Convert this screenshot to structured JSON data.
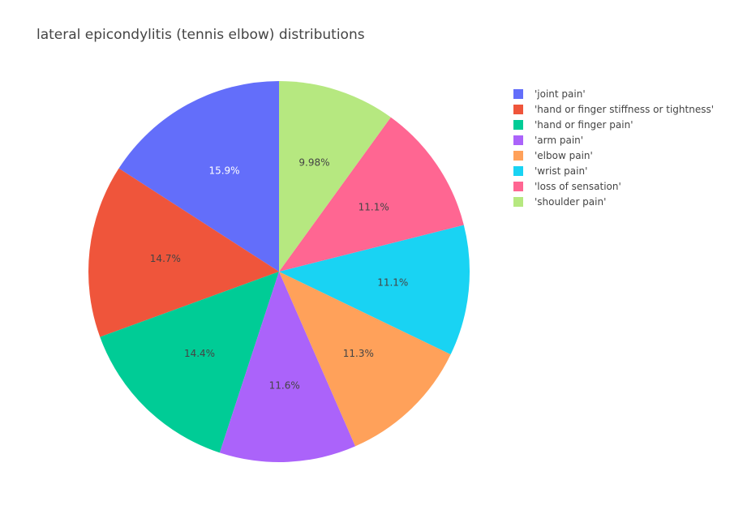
{
  "chart_data": {
    "type": "pie",
    "title": "lateral epicondylitis (tennis elbow) distributions",
    "labels": [
      "'joint pain'",
      "'hand or finger stiffness or tightness'",
      "'hand or finger pain'",
      "'arm pain'",
      "'elbow pain'",
      "'wrist pain'",
      "'loss of sensation'",
      "'shoulder pain'"
    ],
    "values": [
      15.9,
      14.7,
      14.4,
      11.6,
      11.3,
      11.1,
      11.1,
      9.98
    ],
    "value_labels": [
      "15.9%",
      "14.7%",
      "14.4%",
      "11.6%",
      "11.3%",
      "11.1%",
      "11.1%",
      "9.98%"
    ],
    "colors": [
      "#636efa",
      "#ef553b",
      "#00cc96",
      "#ab63fa",
      "#ffa15a",
      "#19d3f3",
      "#ff6692",
      "#b6e880"
    ],
    "label_colors": [
      "#ffffff",
      "#444444",
      "#444444",
      "#444444",
      "#444444",
      "#444444",
      "#444444",
      "#444444"
    ],
    "direction": "counterclockwise",
    "start": "top",
    "legend_position": "right"
  }
}
